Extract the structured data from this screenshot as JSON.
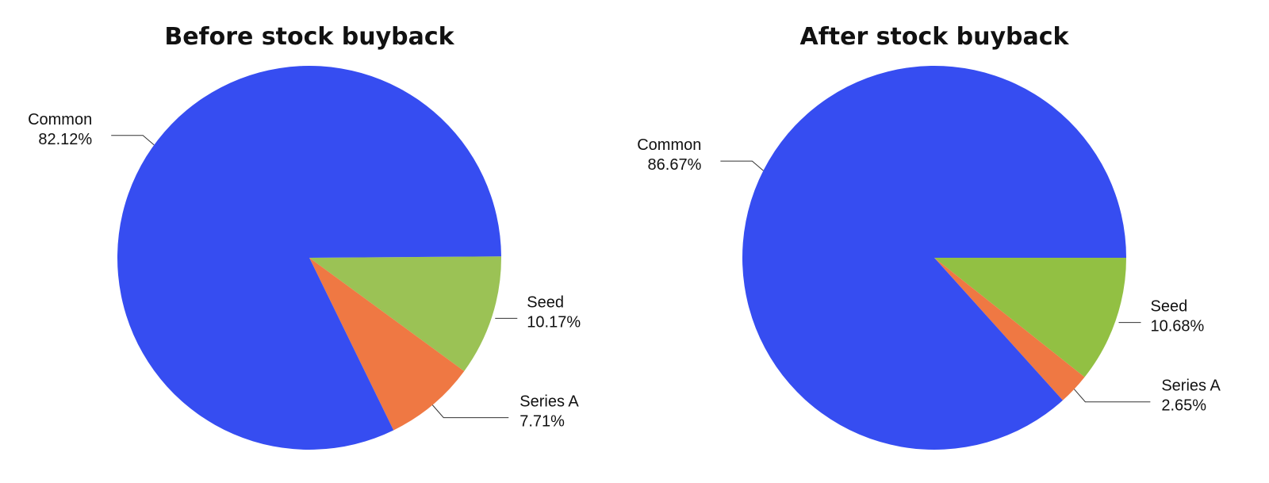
{
  "chart_data": [
    {
      "type": "pie",
      "title": "Before stock buyback",
      "slices": [
        {
          "label": "Common",
          "value": 82.12,
          "value_label": "82.12%",
          "color": "#364DF1"
        },
        {
          "label": "Seed",
          "value": 10.17,
          "value_label": "10.17%",
          "color": "#9BC255"
        },
        {
          "label": "Series A",
          "value": 7.71,
          "value_label": "7.71%",
          "color": "#EF7843"
        }
      ]
    },
    {
      "type": "pie",
      "title": "After stock buyback",
      "slices": [
        {
          "label": "Common",
          "value": 86.67,
          "value_label": "86.67%",
          "color": "#364DF1"
        },
        {
          "label": "Seed",
          "value": 10.68,
          "value_label": "10.68%",
          "color": "#92C043"
        },
        {
          "label": "Series A",
          "value": 2.65,
          "value_label": "2.65%",
          "color": "#EF7843"
        }
      ]
    }
  ]
}
